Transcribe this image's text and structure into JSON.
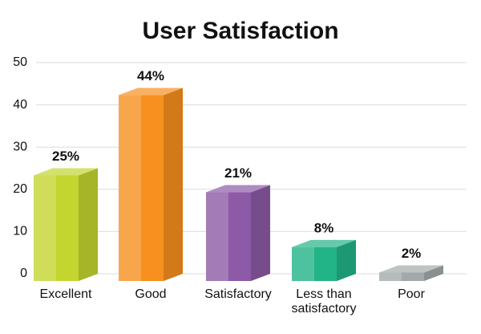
{
  "chart_data": {
    "type": "bar3d",
    "title": "User Satisfaction",
    "categories": [
      "Excellent",
      "Good",
      "Satisfactory",
      "Less than satisfactory",
      "Poor"
    ],
    "values": [
      25,
      44,
      21,
      8,
      2
    ],
    "value_labels": [
      "25%",
      "44%",
      "21%",
      "8%",
      "2%"
    ],
    "colors": [
      "#c3d52f",
      "#f7901e",
      "#8c5aa6",
      "#22b386",
      "#a3a9ab"
    ],
    "ylim": [
      0,
      50
    ],
    "yticks": [
      0,
      10,
      20,
      30,
      40,
      50
    ],
    "grid": true
  }
}
